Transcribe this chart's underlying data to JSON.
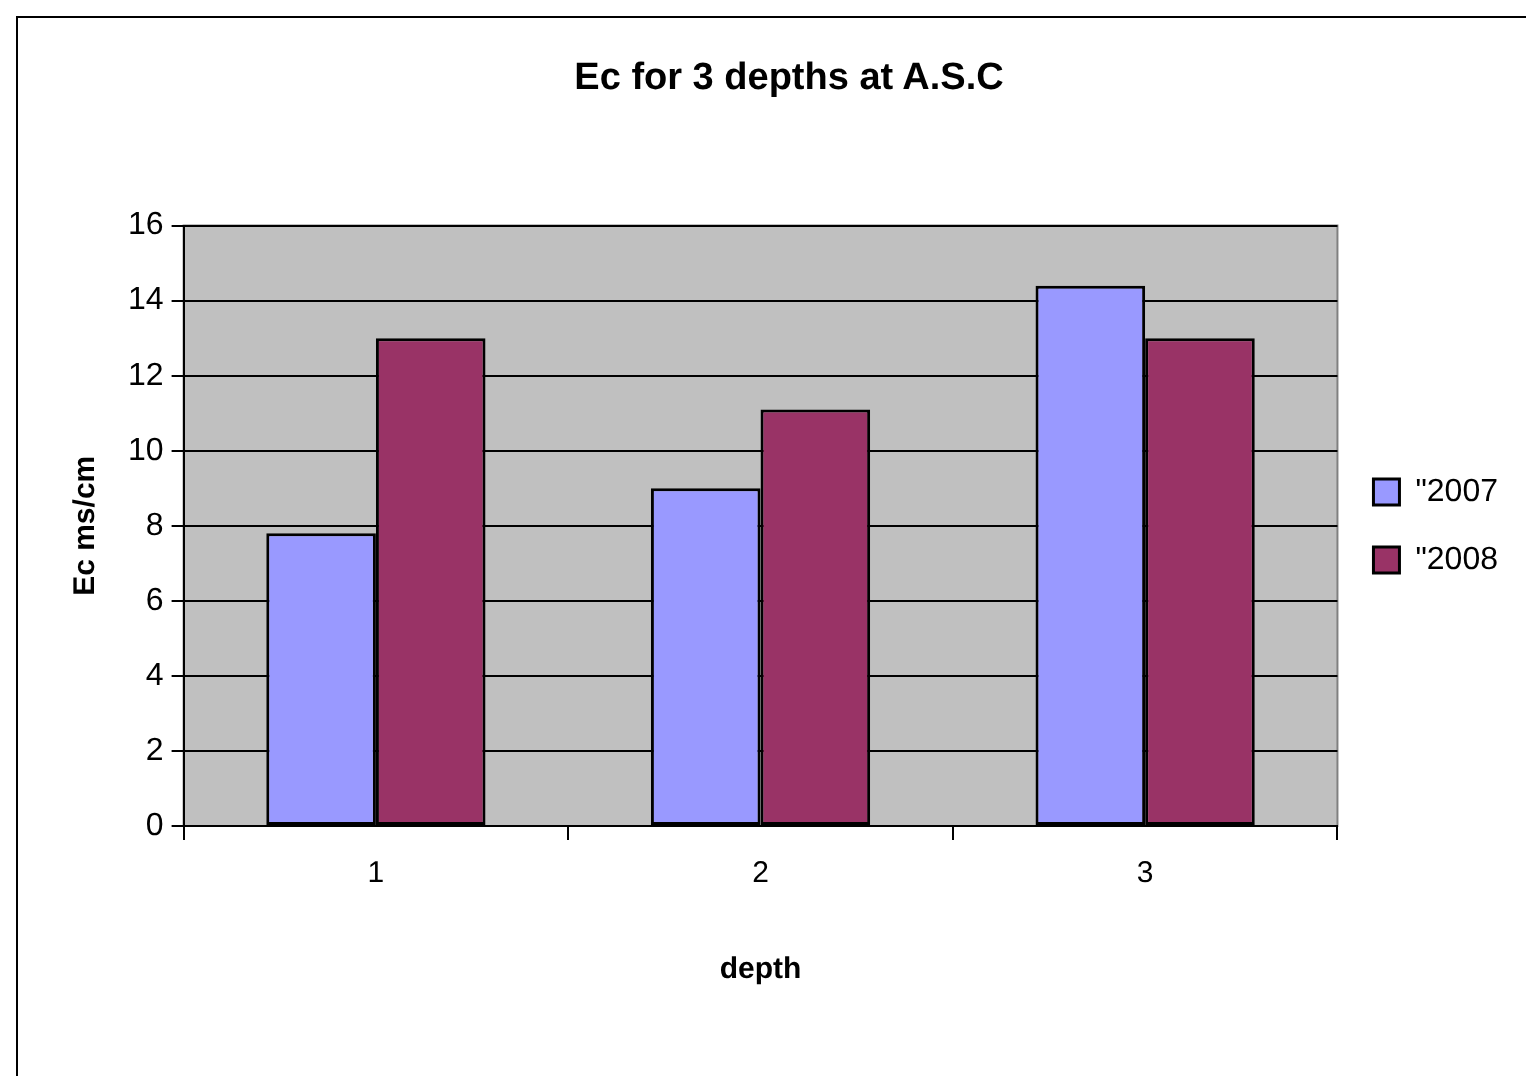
{
  "chart_data": {
    "type": "bar",
    "title": "Ec for 3 depths at A.S.C",
    "xlabel": "depth",
    "ylabel": "Ec ms/cm",
    "categories": [
      "1",
      "2",
      "3"
    ],
    "series": [
      {
        "name": "\"2007",
        "color": "#9999ff",
        "values": [
          7.8,
          9.0,
          14.4
        ]
      },
      {
        "name": "\"2008",
        "color": "#993366",
        "values": [
          13.0,
          11.1,
          13.0
        ]
      }
    ],
    "ylim": [
      0,
      16
    ],
    "yticks": [
      0,
      2,
      4,
      6,
      8,
      10,
      12,
      14,
      16
    ],
    "grid": "y",
    "legend": "right"
  }
}
